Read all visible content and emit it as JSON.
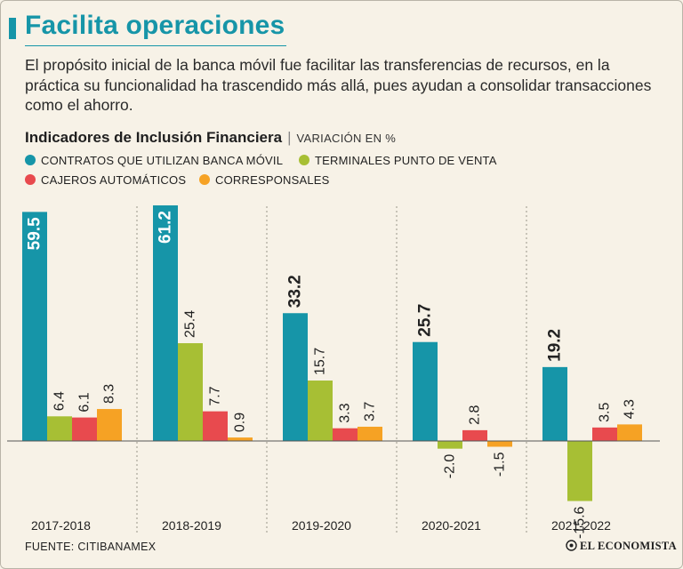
{
  "header": {
    "title": "Facilita operaciones",
    "intro": "El propósito inicial de la banca móvil fue facilitar las transferencias de recursos, en la práctica su funcionalidad ha trascendido más allá, pues ayudan a consolidar transacciones como el ahorro."
  },
  "chart_data": {
    "type": "bar",
    "title": "Indicadores de Inclusión Financiera",
    "unit_label": "VARIACIÓN EN %",
    "categories": [
      "2017-2018",
      "2018-2019",
      "2019-2020",
      "2020-2021",
      "2021-2022"
    ],
    "series": [
      {
        "name": "CONTRATOS QUE UTILIZAN BANCA MÓVIL",
        "color": "#1695a8",
        "values": [
          59.5,
          61.2,
          33.2,
          25.7,
          19.2
        ],
        "labels": [
          "59.5",
          "61.2",
          "33.2",
          "25.7",
          "19.2"
        ]
      },
      {
        "name": "TERMINALES PUNTO DE VENTA",
        "color": "#a7bf34",
        "values": [
          6.4,
          25.4,
          15.7,
          -2.0,
          -15.6
        ],
        "labels": [
          "6.4",
          "25.4",
          "15.7",
          "-2.0",
          "-15.6"
        ]
      },
      {
        "name": "CAJEROS AUTOMÁTICOS",
        "color": "#e84a4e",
        "values": [
          6.1,
          7.7,
          3.3,
          2.8,
          3.5
        ],
        "labels": [
          "6.1",
          "7.7",
          "3.3",
          "2.8",
          "3.5"
        ]
      },
      {
        "name": "CORRESPONSALES",
        "color": "#f6a224",
        "values": [
          8.3,
          0.9,
          3.7,
          -1.5,
          4.3
        ],
        "labels": [
          "8.3",
          "0.9",
          "3.7",
          "-1.5",
          "4.3"
        ]
      }
    ],
    "ylim": [
      -20,
      65
    ],
    "xlabel": "",
    "ylabel": ""
  },
  "footer": {
    "source": "FUENTE: CITIBANAMEX",
    "brand": "EL ECONOMISTA"
  }
}
